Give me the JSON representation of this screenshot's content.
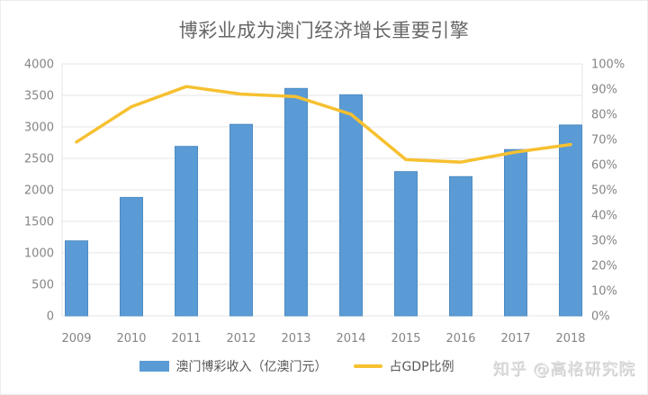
{
  "watermark": "知乎 @高格研究院",
  "colors": {
    "bar": "#5B9BD5",
    "bar_edge": "#4e8cc2",
    "line": "#F6C030",
    "grid": "#e4e4e4",
    "axis_text": "#858585",
    "title_text": "#666666",
    "legend_text": "#595959"
  },
  "chart_data": {
    "type": "combo-bar-line",
    "title": "博彩业成为澳门经济增长重要引擎",
    "categories": [
      "2009",
      "2010",
      "2011",
      "2012",
      "2013",
      "2014",
      "2015",
      "2016",
      "2017",
      "2018"
    ],
    "series": [
      {
        "name": "澳门博彩收入（亿澳门元）",
        "type": "bar",
        "yaxis": "left",
        "values": [
          1190,
          1880,
          2690,
          3040,
          3610,
          3510,
          2290,
          2210,
          2640,
          3030
        ]
      },
      {
        "name": "占GDP比例",
        "type": "line",
        "yaxis": "right",
        "unit": "%",
        "values": [
          69,
          83,
          91,
          88,
          87,
          80,
          62,
          61,
          65,
          68
        ]
      }
    ],
    "left_axis": {
      "min": 0,
      "max": 4000,
      "step": 500,
      "ticks": [
        "0",
        "500",
        "1000",
        "1500",
        "2000",
        "2500",
        "3000",
        "3500",
        "4000"
      ]
    },
    "right_axis": {
      "min": 0,
      "max": 100,
      "step": 10,
      "unit": "%",
      "ticks": [
        "0%",
        "10%",
        "20%",
        "30%",
        "40%",
        "50%",
        "60%",
        "70%",
        "80%",
        "90%",
        "100%"
      ]
    },
    "grid": true,
    "legend_position": "bottom"
  }
}
